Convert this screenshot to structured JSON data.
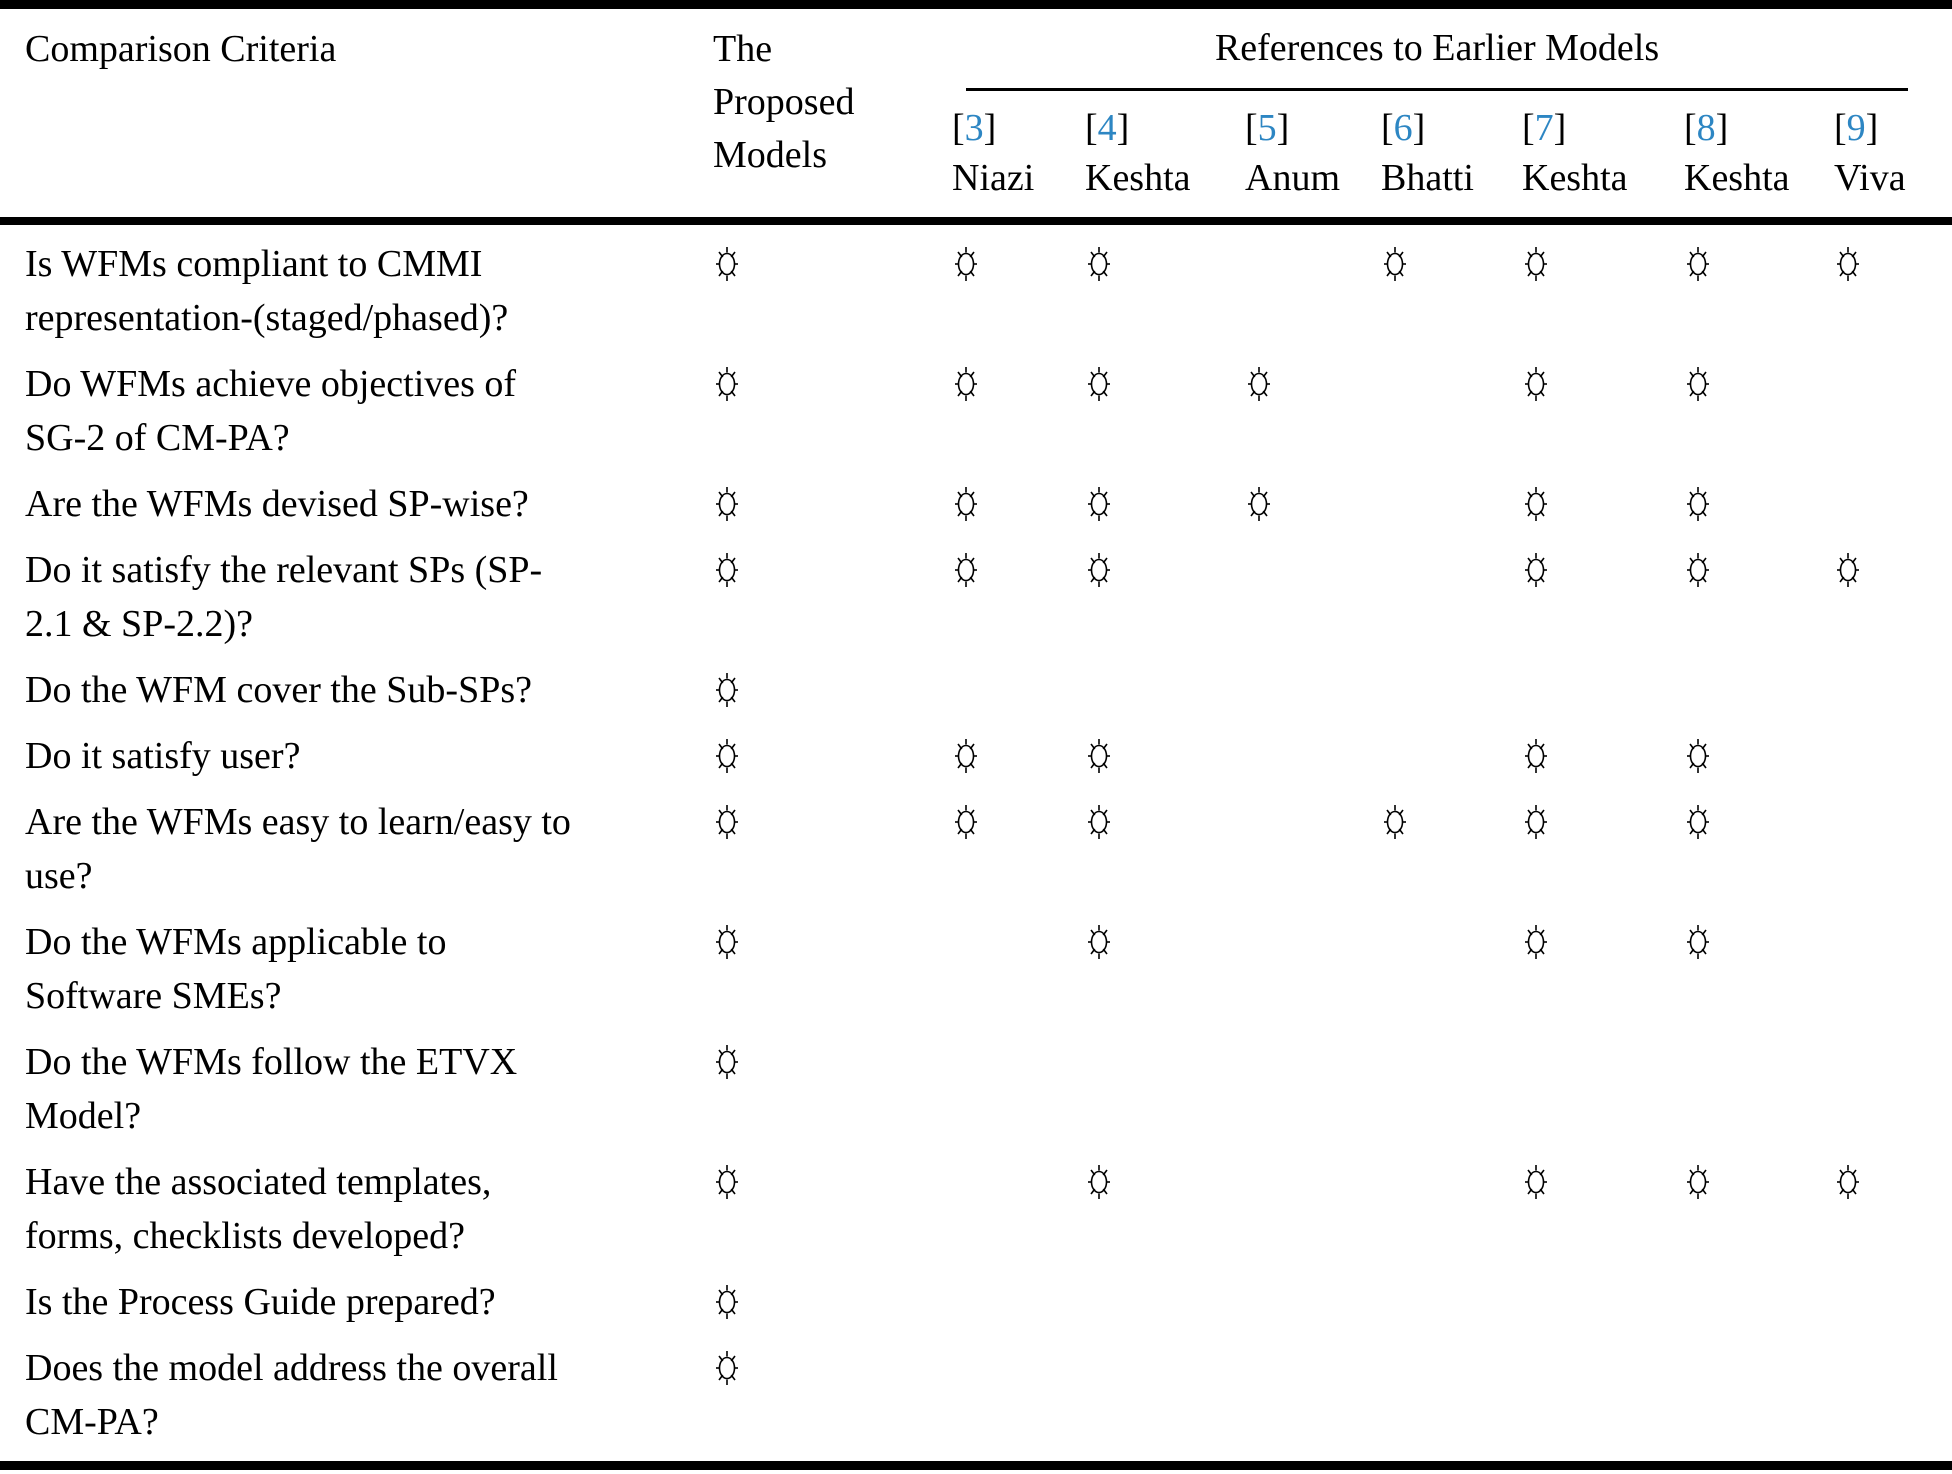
{
  "table": {
    "criteria_header": "Comparison Criteria",
    "proposed_header": "The\nProposed\nModels",
    "references_header": "References to Earlier Models",
    "mark_symbol": "☼",
    "accent_blue": "#2d86c3",
    "ref_columns": [
      {
        "num": "3",
        "name": "Niazi"
      },
      {
        "num": "4",
        "name": "Keshta"
      },
      {
        "num": "5",
        "name": "Anum"
      },
      {
        "num": "6",
        "name": "Bhatti"
      },
      {
        "num": "7",
        "name": "Keshta"
      },
      {
        "num": "8",
        "name": "Keshta"
      },
      {
        "num": "9",
        "name": "Viva"
      }
    ],
    "mark_columns": [
      "Proposed",
      "Niazi [3]",
      "Keshta [4]",
      "Anum [5]",
      "Bhatti [6]",
      "Keshta [7]",
      "Keshta [8]",
      "Viva [9]"
    ],
    "rows": [
      {
        "criteria": "Is WFMs compliant to CMMI\nrepresentation-(staged/phased)?",
        "marks": [
          1,
          1,
          1,
          0,
          1,
          1,
          1,
          1
        ]
      },
      {
        "criteria": "Do WFMs achieve objectives of\nSG-2 of CM-PA?",
        "marks": [
          1,
          1,
          1,
          1,
          0,
          1,
          1,
          0
        ]
      },
      {
        "criteria": "Are the WFMs devised SP-wise?",
        "marks": [
          1,
          1,
          1,
          1,
          0,
          1,
          1,
          0
        ]
      },
      {
        "criteria": "Do it satisfy the relevant SPs (SP-\n2.1 & SP-2.2)?",
        "marks": [
          1,
          1,
          1,
          0,
          0,
          1,
          1,
          1
        ]
      },
      {
        "criteria": "Do the WFM cover the Sub-SPs?",
        "marks": [
          1,
          0,
          0,
          0,
          0,
          0,
          0,
          0
        ]
      },
      {
        "criteria": "Do it satisfy user?",
        "marks": [
          1,
          1,
          1,
          0,
          0,
          1,
          1,
          0
        ]
      },
      {
        "criteria": "Are the WFMs easy to learn/easy to\nuse?",
        "marks": [
          1,
          1,
          1,
          0,
          1,
          1,
          1,
          0
        ]
      },
      {
        "criteria": "Do the WFMs applicable to\nSoftware SMEs?",
        "marks": [
          1,
          0,
          1,
          0,
          0,
          1,
          1,
          0
        ]
      },
      {
        "criteria": "Do the WFMs follow the ETVX\nModel?",
        "marks": [
          1,
          0,
          0,
          0,
          0,
          0,
          0,
          0
        ]
      },
      {
        "criteria": "Have the associated templates,\nforms, checklists developed?",
        "marks": [
          1,
          0,
          1,
          0,
          0,
          1,
          1,
          1
        ]
      },
      {
        "criteria": "Is the Process Guide prepared?",
        "marks": [
          1,
          0,
          0,
          0,
          0,
          0,
          0,
          0
        ]
      },
      {
        "criteria": "Does the model address the overall\nCM-PA?",
        "marks": [
          1,
          0,
          0,
          0,
          0,
          0,
          0,
          0
        ]
      }
    ]
  }
}
